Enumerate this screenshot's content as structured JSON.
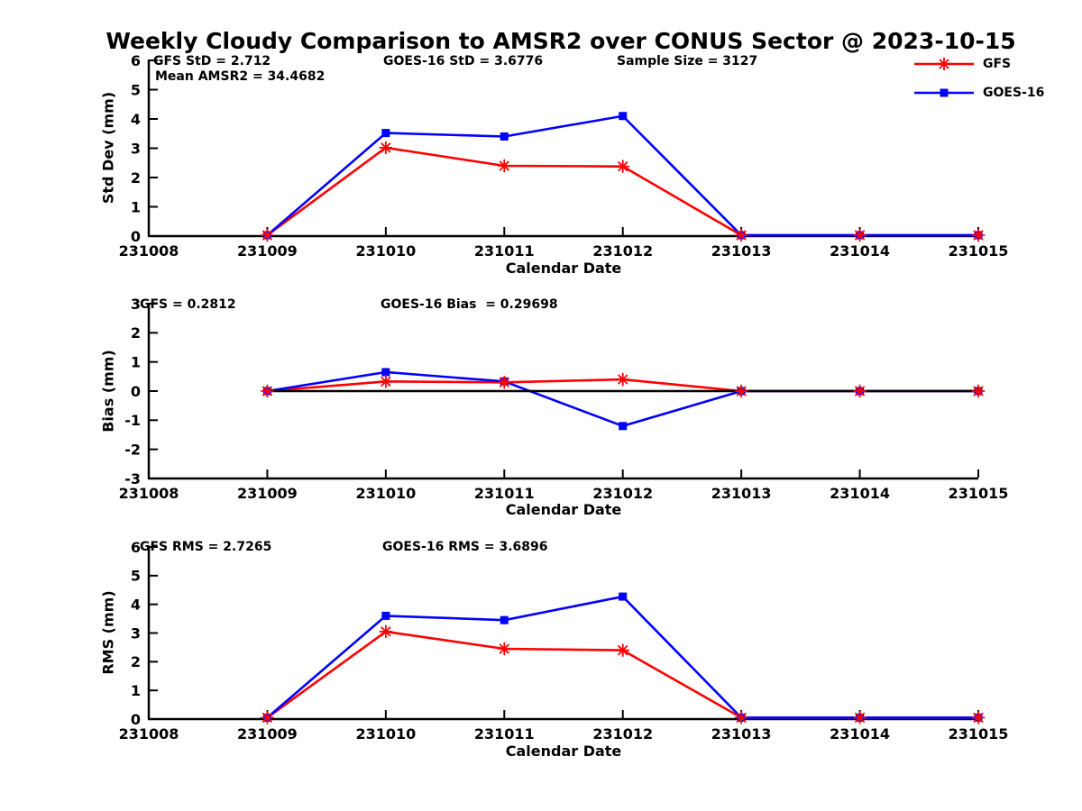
{
  "title": "Weekly Cloudy Comparison to AMSR2 over CONUS Sector @ 2023-10-15",
  "colors": {
    "gfs": "#ff0000",
    "goes16": "#0000ff",
    "axis": "#000000",
    "background": "#ffffff"
  },
  "legend": {
    "position": "top-right",
    "items": [
      {
        "label": "GFS",
        "color": "#ff0000",
        "marker": "asterisk"
      },
      {
        "label": "GOES-16",
        "color": "#0000ff",
        "marker": "square"
      }
    ]
  },
  "chart_data": [
    {
      "type": "line",
      "name": "std-dev",
      "ylabel": "Std Dev (mm)",
      "xlabel": "Calendar Date",
      "ylim": [
        0,
        6
      ],
      "xlim": [
        231008,
        231015
      ],
      "yticks": [
        0,
        1,
        2,
        3,
        4,
        5,
        6
      ],
      "xticks": [
        231008,
        231009,
        231010,
        231011,
        231012,
        231013,
        231014,
        231015
      ],
      "grid": false,
      "zero_line": false,
      "x": [
        231009,
        231010,
        231011,
        231012,
        231013,
        231014,
        231015
      ],
      "series": [
        {
          "name": "GFS",
          "color": "#ff0000",
          "marker": "asterisk",
          "values": [
            0.03,
            3.02,
            2.4,
            2.38,
            0.03,
            0.03,
            0.03
          ]
        },
        {
          "name": "GOES-16",
          "color": "#0000ff",
          "marker": "square",
          "values": [
            0.03,
            3.52,
            3.4,
            4.1,
            0.03,
            0.03,
            0.03
          ]
        }
      ],
      "annotations": [
        "GFS StD = 2.712",
        "GOES-16 StD = 3.6776",
        "Sample Size = 3127",
        "Mean AMSR2 = 34.4682"
      ]
    },
    {
      "type": "line",
      "name": "bias",
      "ylabel": "Bias (mm)",
      "xlabel": "Calendar Date",
      "ylim": [
        -3,
        3
      ],
      "xlim": [
        231008,
        231015
      ],
      "yticks": [
        -3,
        -2,
        -1,
        0,
        1,
        2,
        3
      ],
      "xticks": [
        231008,
        231009,
        231010,
        231011,
        231012,
        231013,
        231014,
        231015
      ],
      "grid": false,
      "zero_line": true,
      "x": [
        231009,
        231010,
        231011,
        231012,
        231013,
        231014,
        231015
      ],
      "series": [
        {
          "name": "GFS",
          "color": "#ff0000",
          "marker": "asterisk",
          "values": [
            0,
            0.33,
            0.3,
            0.4,
            0,
            0,
            0
          ]
        },
        {
          "name": "GOES-16",
          "color": "#0000ff",
          "marker": "square",
          "values": [
            0,
            0.65,
            0.33,
            -1.2,
            0,
            0,
            0
          ]
        }
      ],
      "annotations": [
        "GFS = 0.2812",
        "GOES-16 Bias  = 0.29698"
      ]
    },
    {
      "type": "line",
      "name": "rms",
      "ylabel": "RMS (mm)",
      "xlabel": "Calendar Date",
      "ylim": [
        0,
        6
      ],
      "xlim": [
        231008,
        231015
      ],
      "yticks": [
        0,
        1,
        2,
        3,
        4,
        5,
        6
      ],
      "xticks": [
        231008,
        231009,
        231010,
        231011,
        231012,
        231013,
        231014,
        231015
      ],
      "grid": false,
      "zero_line": false,
      "x": [
        231009,
        231010,
        231011,
        231012,
        231013,
        231014,
        231015
      ],
      "series": [
        {
          "name": "GFS",
          "color": "#ff0000",
          "marker": "asterisk",
          "values": [
            0.05,
            3.05,
            2.45,
            2.4,
            0.05,
            0.05,
            0.05
          ]
        },
        {
          "name": "GOES-16",
          "color": "#0000ff",
          "marker": "square",
          "values": [
            0.05,
            3.6,
            3.45,
            4.27,
            0.05,
            0.05,
            0.05
          ]
        }
      ],
      "annotations": [
        "GFS RMS = 2.7265",
        "GOES-16 RMS = 3.6896"
      ]
    }
  ]
}
